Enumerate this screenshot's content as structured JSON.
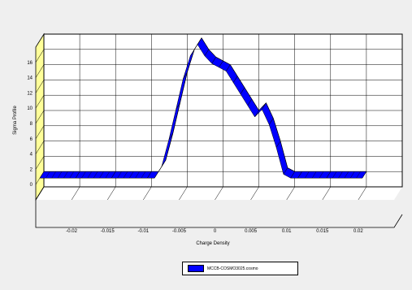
{
  "chart_data": {
    "type": "line",
    "title": "",
    "xlabel": "Charge Density",
    "ylabel": "Sigma Profile",
    "xlim": [
      -0.025,
      0.025
    ],
    "ylim": [
      -2,
      18
    ],
    "x_ticks": [
      "-0.02",
      "-0.015",
      "-0.01",
      "-0.005",
      "0",
      "0.005",
      "0.01",
      "0.015",
      "0.02"
    ],
    "y_ticks": [
      "0",
      "2",
      "4",
      "6",
      "8",
      "10",
      "12",
      "14",
      "16"
    ],
    "grid": true,
    "legend_position": "bottom-center",
    "series": [
      {
        "name": "MCCB-COSMO3025.cosmo",
        "color": "#0000ff",
        "x": [
          -0.025,
          -0.02,
          -0.015,
          -0.01,
          -0.009,
          -0.008,
          -0.007,
          -0.006,
          -0.005,
          -0.004,
          -0.003,
          -0.002,
          -0.001,
          0,
          0.001,
          0.002,
          0.003,
          0.004,
          0.005,
          0.006,
          0.007,
          0.008,
          0.009,
          0.01,
          0.011,
          0.015,
          0.02
        ],
        "y": [
          0,
          0,
          0,
          0,
          0,
          1.5,
          5,
          9,
          13,
          16,
          17.5,
          16,
          15,
          14.5,
          14,
          12.5,
          11,
          9.5,
          8,
          9,
          7,
          4,
          0.5,
          0,
          0,
          0,
          0
        ]
      }
    ]
  }
}
